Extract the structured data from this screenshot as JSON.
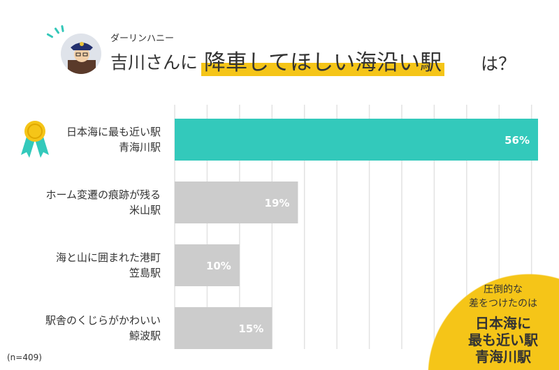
{
  "header": {
    "subtitle": "ダーリンハニー",
    "title_prefix": "吉川さんに",
    "title_highlight": "降車してほしい海沿い駅",
    "title_suffix": "は？"
  },
  "chart_data": {
    "type": "bar",
    "orientation": "horizontal",
    "categories": [
      {
        "line1": "日本海に最も近い駅",
        "line2": "青海川駅"
      },
      {
        "line1": "ホーム変遷の痕跡が残る",
        "line2": "米山駅"
      },
      {
        "line1": "海と山に囲まれた港町",
        "line2": "笠島駅"
      },
      {
        "line1": "駅舎のくじらがかわいい",
        "line2": "鯨波駅"
      }
    ],
    "values": [
      56,
      19,
      10,
      15
    ],
    "data_labels": [
      "56%",
      "19%",
      "10%",
      "15%"
    ],
    "xlim": [
      0,
      56
    ],
    "grid": true,
    "grid_step": 5,
    "colors": {
      "highlight": "#33c9bb",
      "default": "#cccccc",
      "grid": "#e2e2e2"
    },
    "highlight_index": 0,
    "highlight_icon": "medal-icon"
  },
  "note": "(n=409)",
  "callout": {
    "line1": "圧倒的な",
    "line2": "差をつけたのは",
    "big1": "日本海に",
    "big2": "最も近い駅",
    "big3": "青海川駅"
  }
}
